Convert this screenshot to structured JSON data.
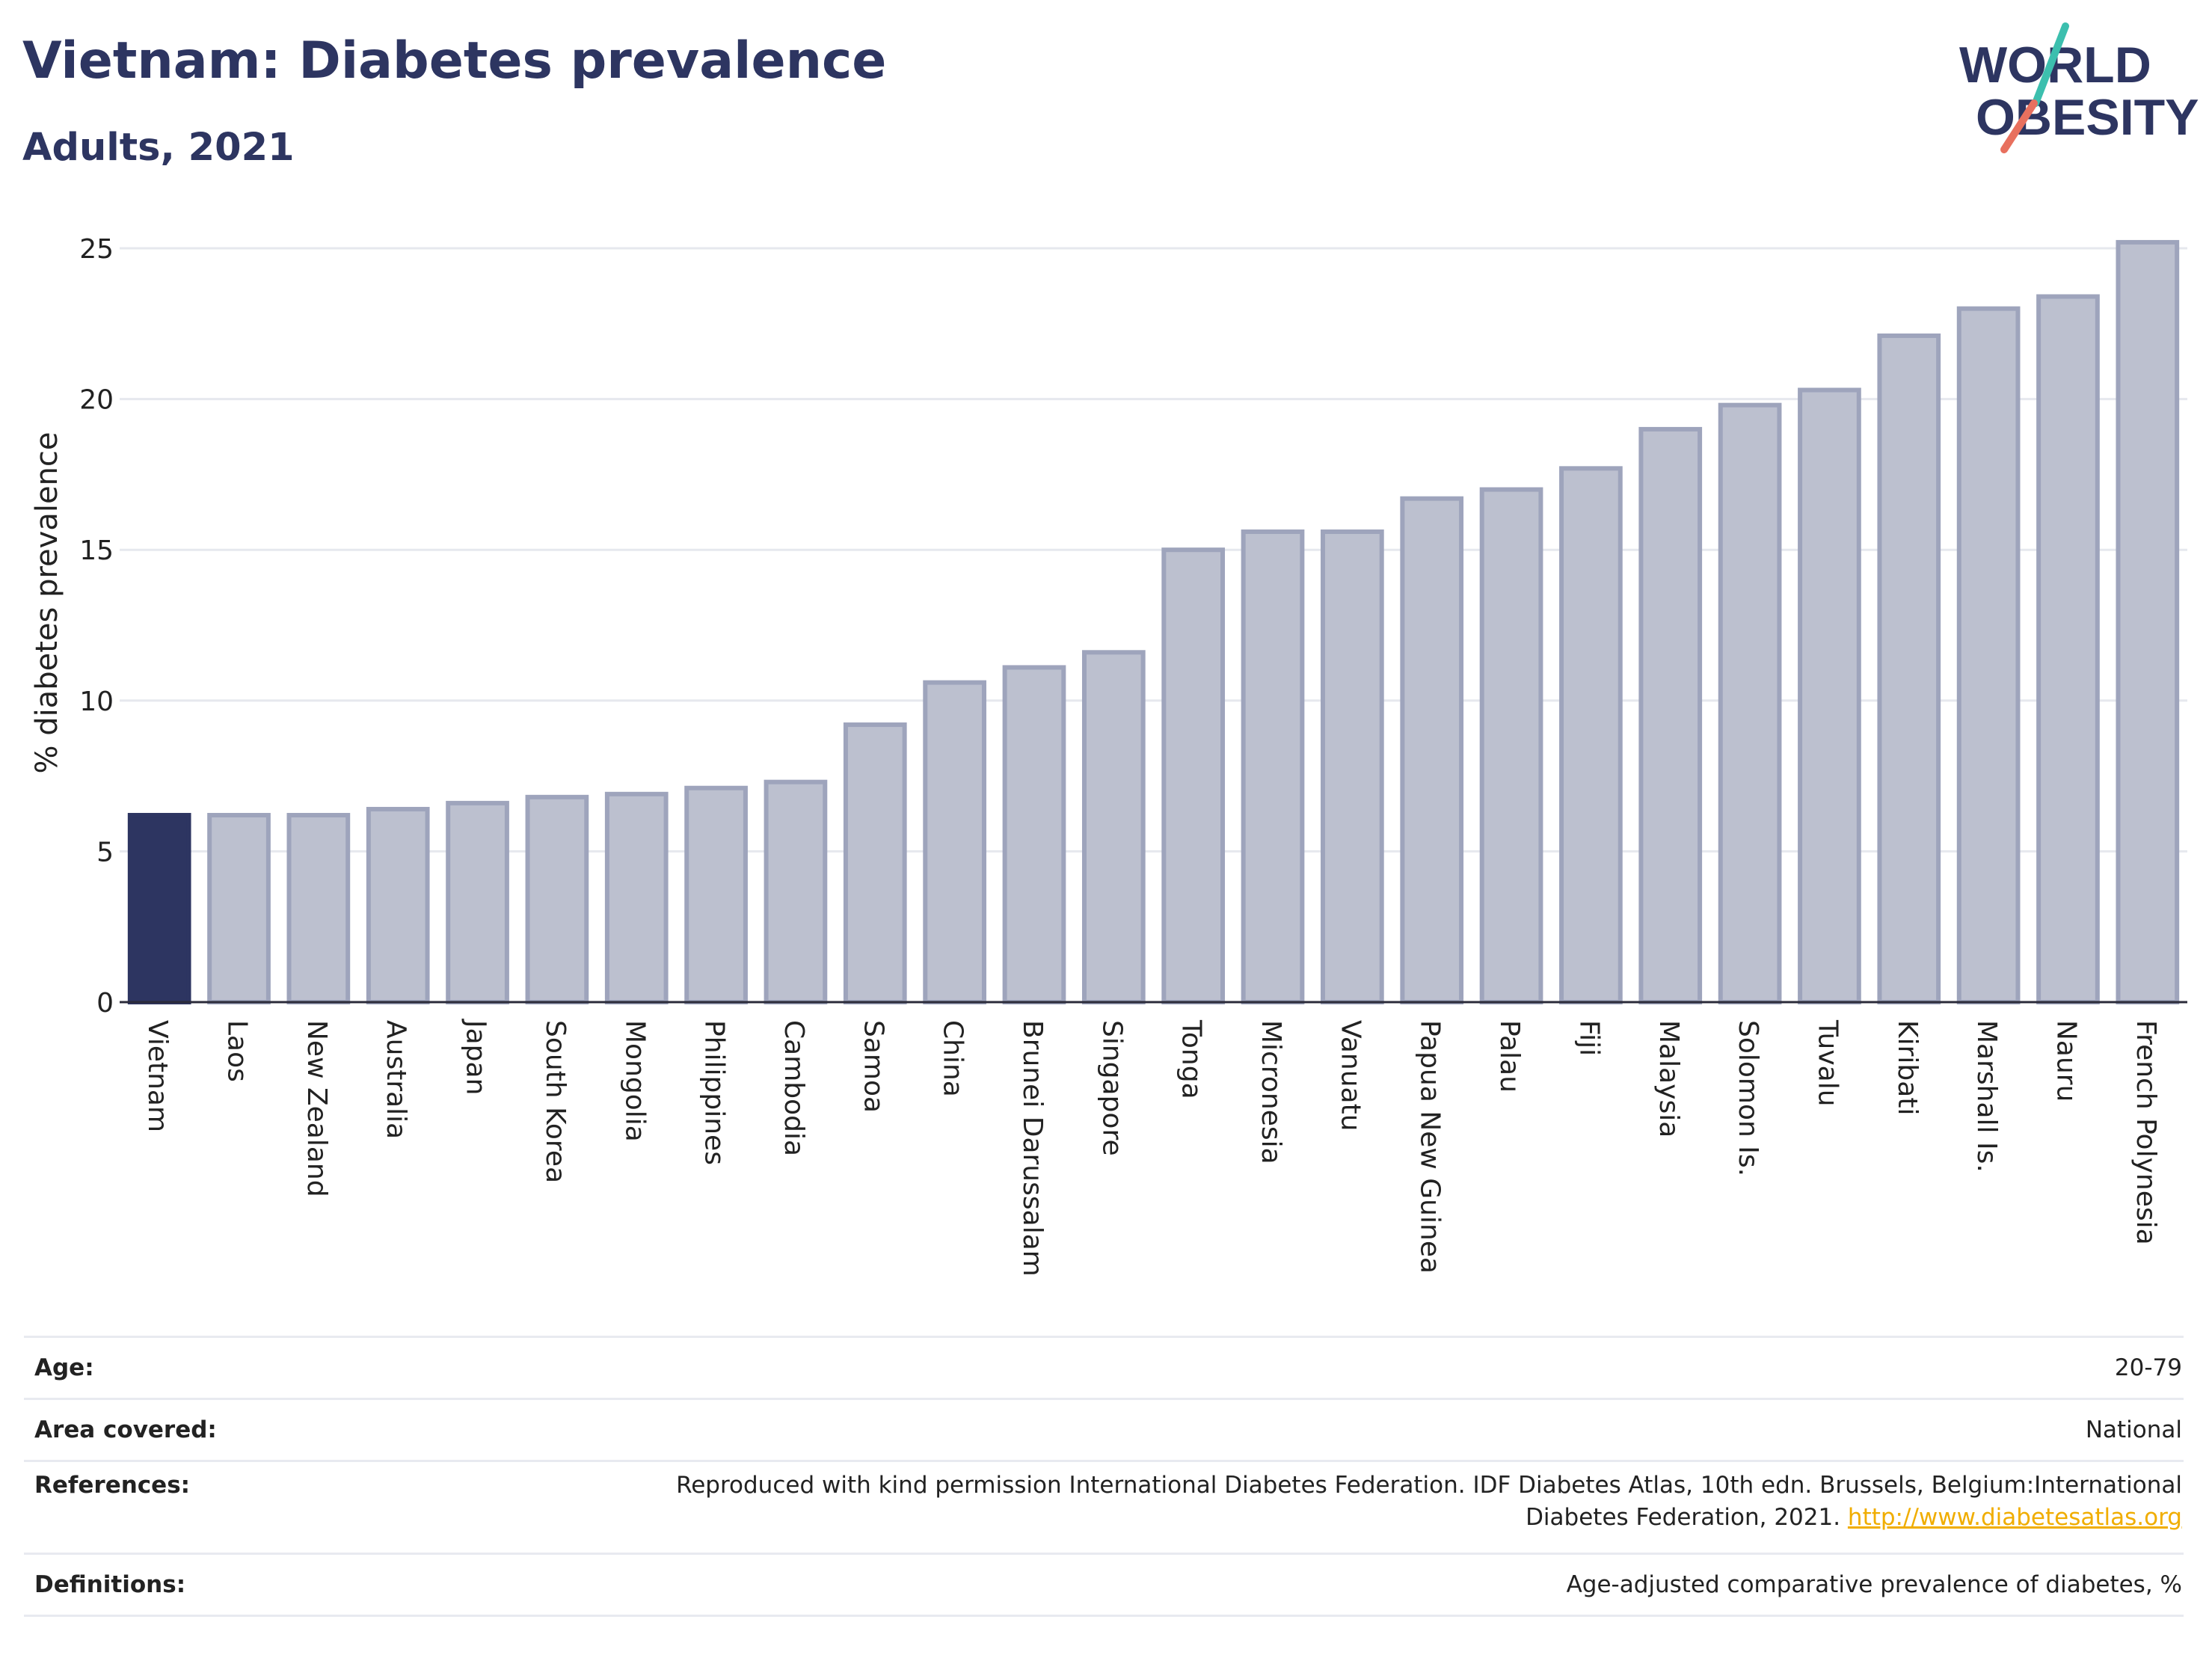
{
  "header": {
    "title": "Vietnam: Diabetes prevalence",
    "subtitle": "Adults, 2021"
  },
  "logo": {
    "line1": "WORLD",
    "line2": "OBESITY",
    "accent_teal": "#3cbfae",
    "accent_coral": "#e8705e",
    "text_color": "#2d3561"
  },
  "chart_data": {
    "type": "bar",
    "ylabel": "% diabetes prevalence",
    "ylim": [
      0,
      26
    ],
    "yticks": [
      0,
      5,
      10,
      15,
      20,
      25
    ],
    "grid": true,
    "highlight": "Vietnam",
    "colors": {
      "highlight": "#2d3561",
      "bar_fill": "#bcc0cf",
      "bar_stroke": "#9ea4bc"
    },
    "categories": [
      "Vietnam",
      "Laos",
      "New Zealand",
      "Australia",
      "Japan",
      "South Korea",
      "Mongolia",
      "Philippines",
      "Cambodia",
      "Samoa",
      "China",
      "Brunei Darussalam",
      "Singapore",
      "Tonga",
      "Micronesia",
      "Vanuatu",
      "Papua New Guinea",
      "Palau",
      "Fiji",
      "Malaysia",
      "Solomon Is.",
      "Tuvalu",
      "Kiribati",
      "Marshall Is.",
      "Nauru",
      "French Polynesia"
    ],
    "values": [
      6.2,
      6.2,
      6.2,
      6.4,
      6.6,
      6.8,
      6.9,
      7.1,
      7.3,
      9.2,
      10.6,
      11.1,
      11.6,
      15.0,
      15.6,
      15.6,
      16.7,
      17.0,
      17.7,
      19.0,
      19.8,
      20.3,
      22.1,
      23.0,
      23.4,
      25.2
    ]
  },
  "info": {
    "age_label": "Age:",
    "age_value": "20-79",
    "area_label": "Area covered:",
    "area_value": "National",
    "ref_label": "References:",
    "ref_text": "Reproduced with kind permission International Diabetes Federation.  IDF Diabetes Atlas, 10th edn. Brussels, Belgium:International Diabetes Federation, 2021.",
    "ref_link": "http://www.diabetesatlas.org",
    "def_label": "Definitions:",
    "def_value": "Age-adjusted comparative prevalence of diabetes, %"
  }
}
